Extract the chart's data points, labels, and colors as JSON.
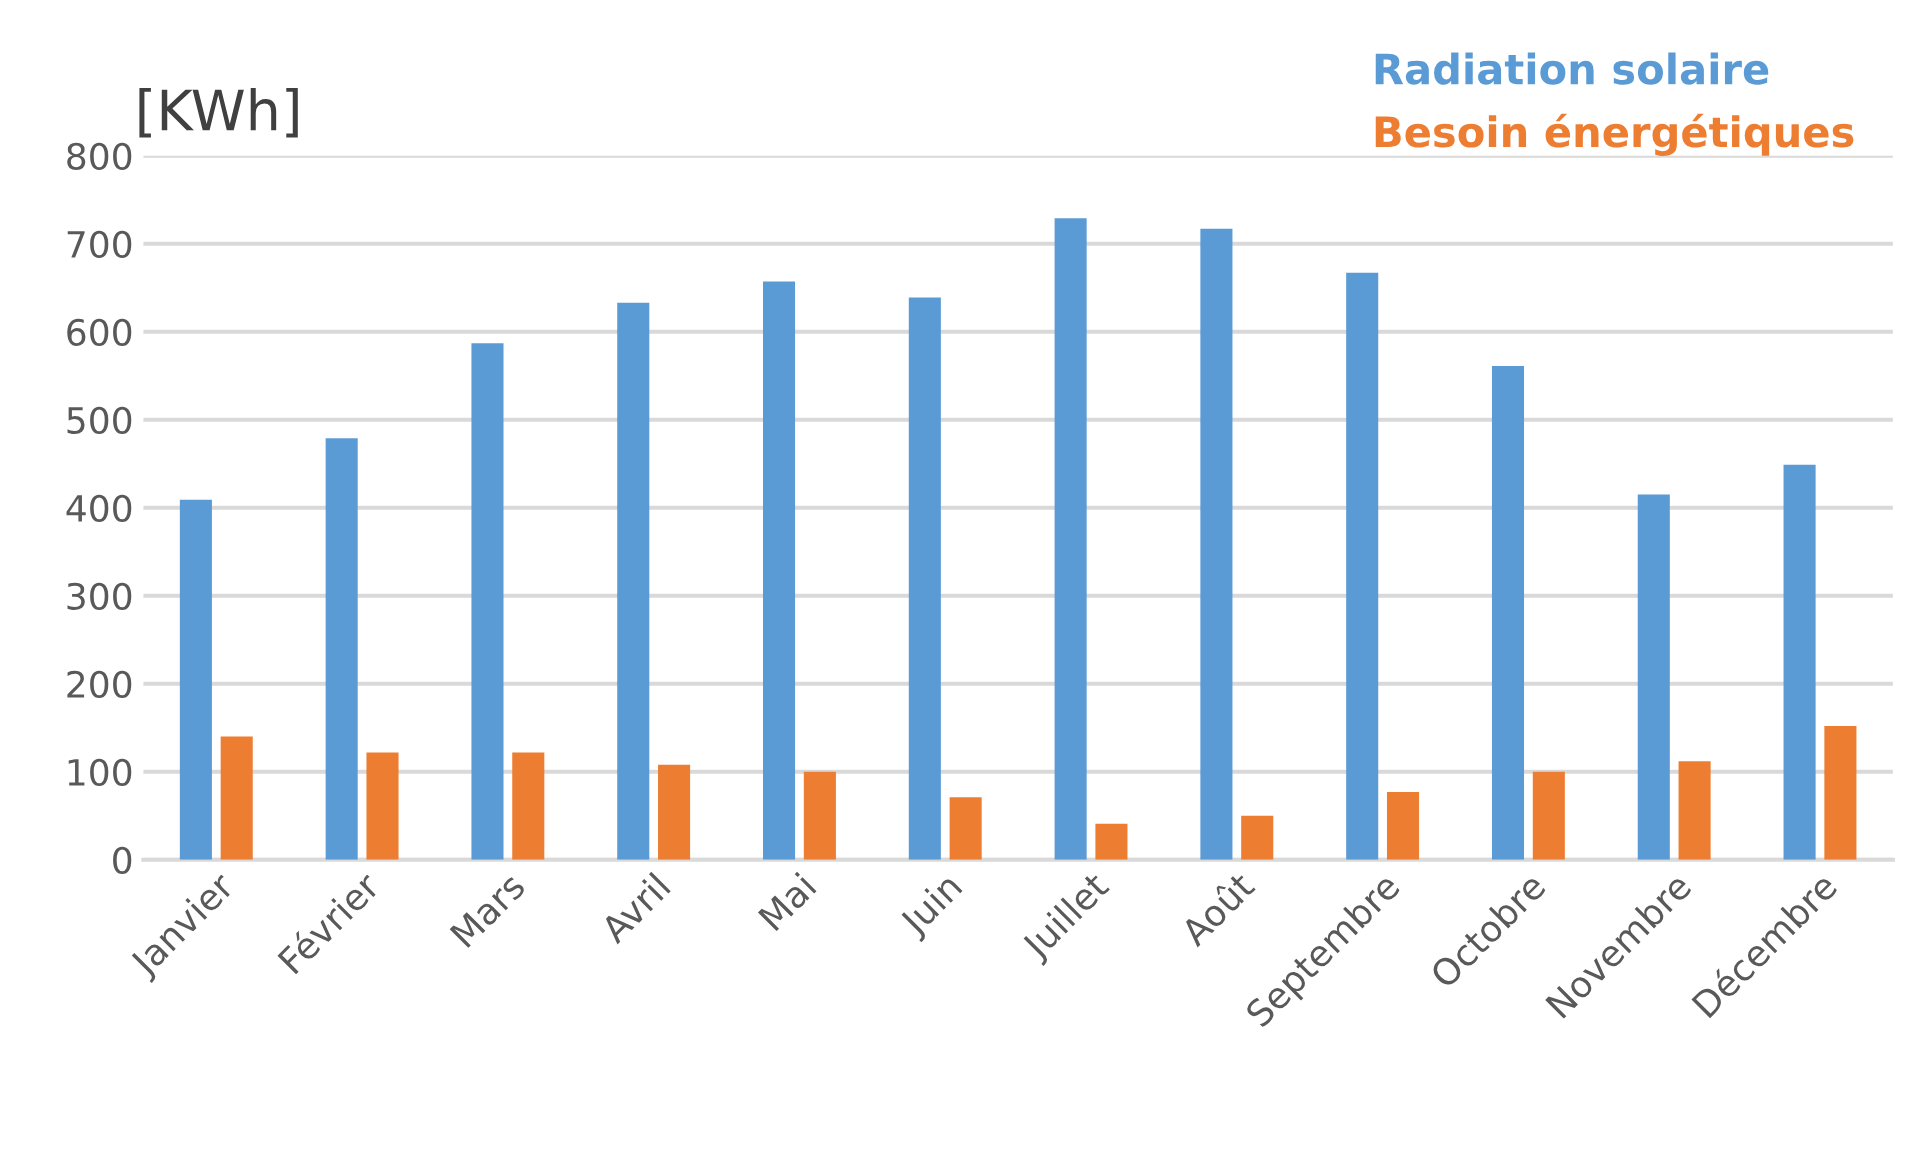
{
  "chart_data": {
    "type": "bar",
    "ylabel": "[KWh]",
    "categories": [
      "Janvier",
      "Février",
      "Mars",
      "Avril",
      "Mai",
      "Juin",
      "Juillet",
      "Août",
      "Septembre",
      "Octobre",
      "Novembre",
      "Décembre"
    ],
    "series": [
      {
        "name": "Radiation solaire",
        "color": "#5b9bd5",
        "values": [
          409,
          479,
          587,
          633,
          657,
          639,
          729,
          717,
          667,
          561,
          415,
          449
        ]
      },
      {
        "name": "Besoin énergétiques",
        "color": "#ed7d31",
        "values": [
          140,
          122,
          122,
          108,
          100,
          71,
          41,
          50,
          77,
          100,
          112,
          152
        ]
      }
    ],
    "ylim": [
      0,
      800
    ],
    "yticks": [
      0,
      100,
      200,
      300,
      400,
      500,
      600,
      700,
      800
    ],
    "grid": "y",
    "legend": "top right"
  }
}
